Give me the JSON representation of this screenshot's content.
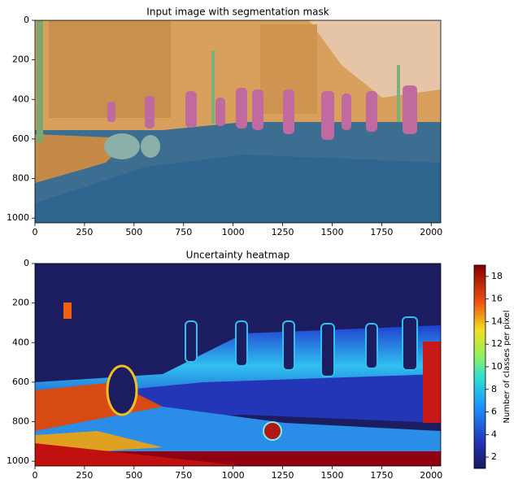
{
  "chart_data": [
    {
      "type": "image",
      "title": "Input image with segmentation mask",
      "xlim": [
        0,
        2048
      ],
      "ylim": [
        1024,
        0
      ],
      "xticks": [
        0,
        250,
        500,
        750,
        1000,
        1250,
        1500,
        1750,
        2000
      ],
      "yticks": [
        0,
        200,
        400,
        600,
        800,
        1000
      ]
    },
    {
      "type": "heatmap",
      "title": "Uncertainty heatmap",
      "xlim": [
        0,
        2048
      ],
      "ylim": [
        1024,
        0
      ],
      "xticks": [
        0,
        250,
        500,
        750,
        1000,
        1250,
        1500,
        1750,
        2000
      ],
      "yticks": [
        0,
        200,
        400,
        600,
        800,
        1000
      ],
      "colorbar": {
        "label": "Number of classes per pixel",
        "colormap": "jet",
        "lim": [
          1,
          19
        ],
        "ticks": [
          2,
          4,
          6,
          8,
          10,
          12,
          14,
          16,
          18
        ]
      }
    }
  ]
}
